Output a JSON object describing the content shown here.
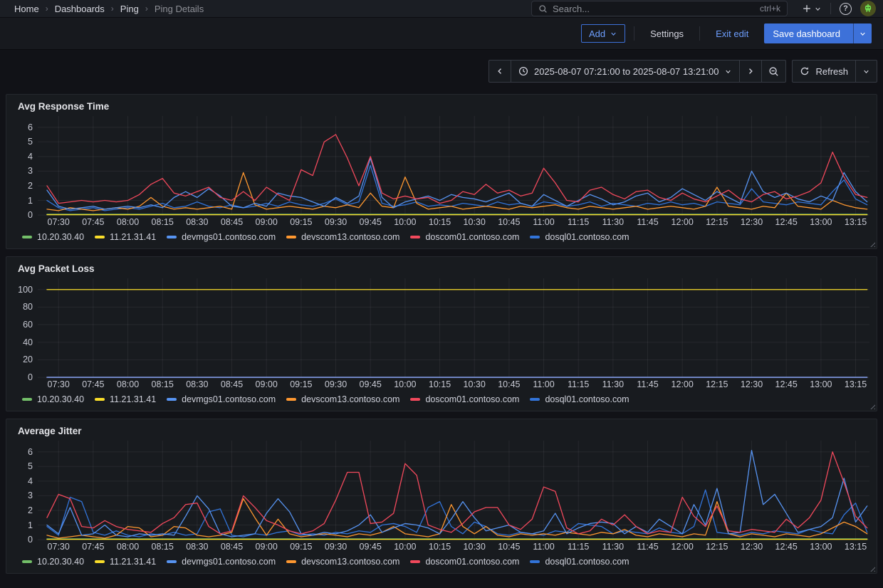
{
  "nav": {
    "breadcrumbs": [
      "Home",
      "Dashboards",
      "Ping",
      "Ping Details"
    ],
    "search": {
      "placeholder": "Search...",
      "shortcut": "ctrl+k"
    },
    "help_glyph": "?"
  },
  "toolbar": {
    "add_label": "Add",
    "settings_label": "Settings",
    "exit_edit_label": "Exit edit",
    "save_label": "Save dashboard"
  },
  "timebar": {
    "range_label": "2025-08-07 07:21:00 to 2025-08-07 13:21:00",
    "refresh_label": "Refresh"
  },
  "colors": {
    "green": "#73BF69",
    "yellow": "#FADE2A",
    "blue": "#5794F2",
    "orange": "#FF9830",
    "red": "#F2495C",
    "blue2": "#3274D9",
    "primary": "#3D71D9",
    "link": "#6E9FFF",
    "panel_bg": "#181b1f",
    "page_bg": "#111217"
  },
  "chart_data": [
    {
      "type": "line",
      "title": "Avg Response Time",
      "y_ticks": [
        0,
        1,
        2,
        3,
        4,
        5,
        6
      ],
      "x_total_min": 360,
      "x_tick_first_min": 9,
      "x_tick_step_min": 15,
      "x_tick_labels": [
        "07:30",
        "07:45",
        "08:00",
        "08:15",
        "08:30",
        "08:45",
        "09:00",
        "09:15",
        "09:30",
        "09:45",
        "10:00",
        "10:15",
        "10:30",
        "10:45",
        "11:00",
        "11:15",
        "11:30",
        "11:45",
        "12:00",
        "12:15",
        "12:30",
        "12:45",
        "13:00",
        "13:15"
      ],
      "legend_order": [
        "10.20.30.40",
        "11.21.31.41",
        "devmgs01.contoso.com",
        "devscom13.contoso.com",
        "doscom01.contoso.com",
        "dosql01.contoso.com"
      ],
      "series": [
        {
          "name": "10.20.30.40",
          "color": "#73BF69",
          "x_start": 4,
          "x_end": 359,
          "const": 0.05
        },
        {
          "name": "11.21.31.41",
          "color": "#FADE2A",
          "x_start": 4,
          "x_end": 359,
          "const": 0.02
        },
        {
          "name": "dosql01.contoso.com",
          "color": "#3274D9",
          "x_start": 4,
          "x_step": 5,
          "values": [
            1.0,
            0.5,
            0.3,
            0.4,
            0.5,
            0.3,
            0.4,
            0.5,
            0.4,
            0.6,
            0.8,
            0.5,
            0.6,
            0.9,
            0.6,
            0.5,
            0.7,
            0.5,
            0.6,
            0.8,
            0.6,
            0.9,
            0.7,
            0.6,
            0.8,
            1.1,
            0.7,
            0.9,
            3.4,
            0.8,
            0.6,
            0.7,
            0.9,
            0.6,
            0.7,
            0.6,
            0.8,
            0.7,
            0.6,
            0.9,
            0.7,
            0.8,
            0.6,
            0.9,
            0.8,
            0.6,
            0.7,
            0.9,
            0.6,
            0.8,
            0.7,
            0.6,
            0.8,
            0.7,
            0.9,
            0.7,
            0.8,
            0.6,
            0.9,
            0.8,
            0.7,
            1.8,
            0.9,
            0.8,
            0.7,
            0.9,
            0.8,
            0.7,
            1.6,
            2.4,
            1.1,
            0.7
          ]
        },
        {
          "name": "devscom13.contoso.com",
          "color": "#FF9830",
          "x_start": 4,
          "x_step": 5,
          "values": [
            0.4,
            0.3,
            0.5,
            0.4,
            0.3,
            0.4,
            0.5,
            0.4,
            0.6,
            1.2,
            0.6,
            0.4,
            0.5,
            0.4,
            0.5,
            0.6,
            0.4,
            2.9,
            0.7,
            0.4,
            0.5,
            0.6,
            0.5,
            0.4,
            0.6,
            0.5,
            0.7,
            0.5,
            1.5,
            0.6,
            0.5,
            2.6,
            0.8,
            0.4,
            0.5,
            0.6,
            0.4,
            0.5,
            0.6,
            0.5,
            0.4,
            0.6,
            0.5,
            0.6,
            0.7,
            0.5,
            0.4,
            0.6,
            0.5,
            0.4,
            0.5,
            0.6,
            0.4,
            0.5,
            0.6,
            0.5,
            0.4,
            0.6,
            1.9,
            0.6,
            0.5,
            0.4,
            0.6,
            0.5,
            1.5,
            0.6,
            0.5,
            0.4,
            1.0,
            0.7,
            0.5,
            0.4
          ]
        },
        {
          "name": "devmgs01.contoso.com",
          "color": "#5794F2",
          "x_start": 4,
          "x_step": 5,
          "values": [
            1.7,
            0.6,
            0.4,
            0.5,
            0.6,
            0.4,
            0.5,
            0.6,
            0.5,
            0.7,
            0.5,
            1.2,
            1.6,
            1.2,
            1.8,
            1.3,
            0.6,
            0.5,
            0.8,
            0.6,
            1.5,
            1.3,
            1.2,
            0.9,
            0.6,
            1.2,
            0.8,
            1.3,
            3.9,
            1.2,
            0.5,
            0.9,
            1.1,
            1.3,
            1.0,
            1.4,
            1.2,
            1.1,
            0.9,
            1.2,
            1.5,
            0.8,
            0.6,
            1.4,
            1.0,
            0.6,
            1.0,
            1.4,
            1.1,
            0.7,
            0.9,
            1.3,
            1.5,
            0.9,
            1.2,
            1.8,
            1.4,
            1.0,
            1.6,
            1.2,
            0.8,
            3.0,
            1.6,
            1.2,
            1.5,
            1.1,
            0.9,
            1.3,
            1.0,
            2.9,
            1.6,
            0.9
          ]
        },
        {
          "name": "doscom01.contoso.com",
          "color": "#F2495C",
          "x_start": 4,
          "x_step": 5,
          "values": [
            2.0,
            0.8,
            0.9,
            1.0,
            0.9,
            1.0,
            0.9,
            1.0,
            1.4,
            2.1,
            2.5,
            1.5,
            1.3,
            1.6,
            1.9,
            1.2,
            1.0,
            1.6,
            1.0,
            1.9,
            1.4,
            1.0,
            3.1,
            2.7,
            5.0,
            5.5,
            3.9,
            2.0,
            4.0,
            1.5,
            1.1,
            1.3,
            1.1,
            1.2,
            0.8,
            1.0,
            1.6,
            1.4,
            2.1,
            1.5,
            1.7,
            1.3,
            1.5,
            3.2,
            2.2,
            1.0,
            0.9,
            1.7,
            1.9,
            1.4,
            1.1,
            1.6,
            1.7,
            1.2,
            1.0,
            1.5,
            1.1,
            0.9,
            1.3,
            1.7,
            1.1,
            0.9,
            1.4,
            1.6,
            1.1,
            1.3,
            1.6,
            2.2,
            4.3,
            2.6,
            1.4,
            1.2
          ]
        }
      ]
    },
    {
      "type": "line",
      "title": "Avg Packet Loss",
      "y_ticks": [
        0,
        20,
        40,
        60,
        80,
        100
      ],
      "x_total_min": 360,
      "x_tick_first_min": 9,
      "x_tick_step_min": 15,
      "x_tick_labels": [
        "07:30",
        "07:45",
        "08:00",
        "08:15",
        "08:30",
        "08:45",
        "09:00",
        "09:15",
        "09:30",
        "09:45",
        "10:00",
        "10:15",
        "10:30",
        "10:45",
        "11:00",
        "11:15",
        "11:30",
        "11:45",
        "12:00",
        "12:15",
        "12:30",
        "12:45",
        "13:00",
        "13:15"
      ],
      "legend_order": [
        "10.20.30.40",
        "11.21.31.41",
        "devmgs01.contoso.com",
        "devscom13.contoso.com",
        "doscom01.contoso.com",
        "dosql01.contoso.com"
      ],
      "series": [
        {
          "name": "10.20.30.40",
          "color": "#73BF69",
          "x_start": 4,
          "x_end": 359,
          "const": 0
        },
        {
          "name": "dosql01.contoso.com",
          "color": "#3274D9",
          "x_start": 4,
          "x_end": 359,
          "const": 0
        },
        {
          "name": "devscom13.contoso.com",
          "color": "#FF9830",
          "x_start": 4,
          "x_end": 359,
          "const": 0
        },
        {
          "name": "doscom01.contoso.com",
          "color": "#F2495C",
          "x_start": 4,
          "x_end": 359,
          "const": 0
        },
        {
          "name": "11.21.31.41",
          "color": "#FADE2A",
          "x_start": 4,
          "x_end": 359,
          "const": 100
        },
        {
          "name": "devmgs01.contoso.com",
          "color": "#5794F2",
          "x_start": 4,
          "x_end": 359,
          "const": 0
        }
      ]
    },
    {
      "type": "line",
      "title": "Average Jitter",
      "y_ticks": [
        0,
        1,
        2,
        3,
        4,
        5,
        6
      ],
      "x_total_min": 360,
      "x_tick_first_min": 9,
      "x_tick_step_min": 15,
      "x_tick_labels": [
        "07:30",
        "07:45",
        "08:00",
        "08:15",
        "08:30",
        "08:45",
        "09:00",
        "09:15",
        "09:30",
        "09:45",
        "10:00",
        "10:15",
        "10:30",
        "10:45",
        "11:00",
        "11:15",
        "11:30",
        "11:45",
        "12:00",
        "12:15",
        "12:30",
        "12:45",
        "13:00",
        "13:15"
      ],
      "legend_order": [
        "10.20.30.40",
        "11.21.31.41",
        "devmgs01.contoso.com",
        "devscom13.contoso.com",
        "doscom01.contoso.com",
        "dosql01.contoso.com"
      ],
      "series": [
        {
          "name": "10.20.30.40",
          "color": "#73BF69",
          "x_start": 4,
          "x_end": 359,
          "const": 0.05
        },
        {
          "name": "11.21.31.41",
          "color": "#FADE2A",
          "x_start": 4,
          "x_end": 359,
          "const": 0.02
        },
        {
          "name": "dosql01.contoso.com",
          "color": "#3274D9",
          "x_start": 4,
          "x_step": 5,
          "values": [
            0.9,
            0.3,
            2.9,
            2.6,
            0.5,
            0.3,
            0.6,
            0.3,
            0.2,
            0.4,
            0.3,
            0.5,
            0.3,
            0.4,
            1.9,
            2.1,
            0.3,
            0.2,
            0.4,
            0.3,
            0.5,
            0.6,
            0.3,
            0.4,
            0.3,
            0.5,
            0.4,
            0.6,
            0.5,
            1.0,
            1.1,
            0.9,
            0.5,
            2.2,
            2.6,
            0.9,
            0.4,
            1.2,
            0.9,
            0.4,
            0.3,
            0.5,
            0.4,
            0.3,
            0.6,
            0.5,
            1.1,
            1.0,
            0.9,
            0.4,
            0.6,
            0.5,
            0.4,
            0.8,
            0.5,
            0.4,
            0.9,
            3.4,
            0.5,
            0.4,
            0.3,
            0.5,
            0.4,
            0.6,
            0.5,
            0.4,
            0.7,
            0.5,
            0.4,
            1.7,
            2.5,
            0.5
          ]
        },
        {
          "name": "devscom13.contoso.com",
          "color": "#FF9830",
          "x_start": 4,
          "x_step": 5,
          "values": [
            0.3,
            0.1,
            0.2,
            0.3,
            0.2,
            0.1,
            0.3,
            0.9,
            0.8,
            0.2,
            0.3,
            0.9,
            0.8,
            0.3,
            0.2,
            0.3,
            0.5,
            2.8,
            1.5,
            0.3,
            1.4,
            0.4,
            0.2,
            0.3,
            0.4,
            0.3,
            0.2,
            0.4,
            0.3,
            0.5,
            0.9,
            0.4,
            0.3,
            0.2,
            0.4,
            2.4,
            0.9,
            0.4,
            0.9,
            0.3,
            0.2,
            0.4,
            0.3,
            0.4,
            0.3,
            0.5,
            0.4,
            0.3,
            0.5,
            0.4,
            0.7,
            0.3,
            0.2,
            0.4,
            0.3,
            0.2,
            0.4,
            0.3,
            2.6,
            0.4,
            0.2,
            0.4,
            0.3,
            0.2,
            0.4,
            0.3,
            0.2,
            0.4,
            0.8,
            1.2,
            0.9,
            0.4
          ]
        },
        {
          "name": "devmgs01.contoso.com",
          "color": "#5794F2",
          "x_start": 4,
          "x_step": 5,
          "values": [
            1.0,
            0.4,
            2.2,
            0.3,
            0.4,
            1.0,
            0.3,
            0.2,
            0.4,
            0.3,
            0.4,
            0.3,
            1.6,
            3.0,
            2.1,
            0.4,
            0.2,
            0.3,
            0.4,
            1.8,
            2.8,
            1.9,
            0.4,
            0.3,
            0.5,
            0.4,
            0.6,
            1.0,
            1.7,
            0.5,
            0.8,
            1.1,
            1.0,
            0.8,
            0.4,
            1.4,
            2.6,
            1.5,
            0.6,
            0.8,
            1.0,
            0.5,
            0.4,
            0.6,
            1.8,
            0.4,
            0.8,
            1.1,
            1.2,
            1.1,
            0.4,
            0.9,
            0.5,
            1.4,
            0.9,
            0.4,
            2.4,
            1.0,
            3.5,
            0.4,
            0.5,
            6.1,
            2.4,
            3.1,
            1.8,
            0.5,
            0.7,
            0.9,
            1.5,
            4.2,
            1.2,
            2.3
          ]
        },
        {
          "name": "doscom01.contoso.com",
          "color": "#F2495C",
          "x_start": 4,
          "x_step": 5,
          "values": [
            1.5,
            3.1,
            2.8,
            0.9,
            0.8,
            1.3,
            0.9,
            0.7,
            0.6,
            0.5,
            1.1,
            1.5,
            2.4,
            2.5,
            0.9,
            0.4,
            0.6,
            3.0,
            2.2,
            1.3,
            1.0,
            0.6,
            0.4,
            0.6,
            1.1,
            2.7,
            4.6,
            4.6,
            1.1,
            1.2,
            1.8,
            5.2,
            4.4,
            1.0,
            0.7,
            0.5,
            1.1,
            1.9,
            2.2,
            2.2,
            1.0,
            0.7,
            1.4,
            3.6,
            3.3,
            0.8,
            0.4,
            0.6,
            1.4,
            1.0,
            1.7,
            0.9,
            0.4,
            0.6,
            0.5,
            2.9,
            1.6,
            0.9,
            2.3,
            0.6,
            0.5,
            0.7,
            0.6,
            0.5,
            1.4,
            0.8,
            1.5,
            2.7,
            6.0,
            3.9,
            1.6,
            0.8
          ]
        }
      ]
    }
  ]
}
